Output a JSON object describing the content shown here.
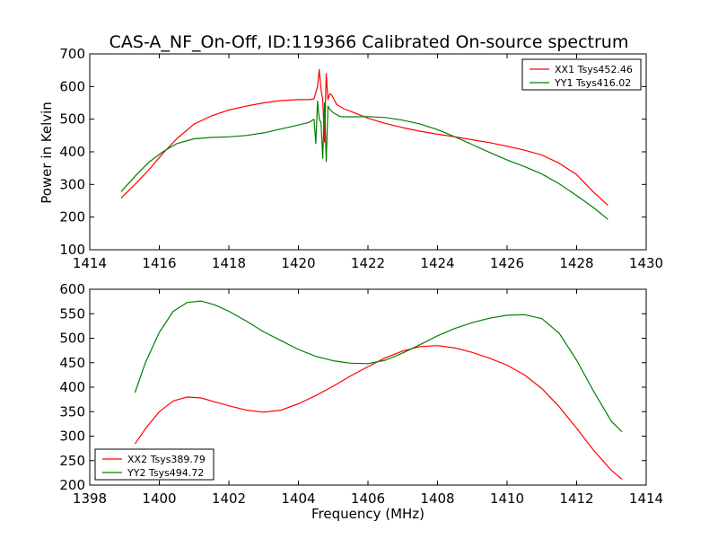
{
  "title": "CAS-A_NF_On-Off, ID:119366 Calibrated On-source spectrum",
  "ylabel": "Power in Kelvin",
  "xlabel": "Frequency (MHz)",
  "colors": {
    "red": "#ff0000",
    "green": "#008000"
  },
  "chart_data": [
    {
      "type": "line",
      "xlim": [
        1414,
        1430
      ],
      "ylim": [
        100,
        700
      ],
      "xticks": [
        1414,
        1416,
        1418,
        1420,
        1422,
        1424,
        1426,
        1428,
        1430
      ],
      "yticks": [
        100,
        200,
        300,
        400,
        500,
        600,
        700
      ],
      "legend_position": "top-right",
      "ylabel": "Power in Kelvin",
      "series": [
        {
          "name": "XX1 Tsys452.46",
          "color": "#ff0000",
          "x": [
            1414.9,
            1415.3,
            1415.7,
            1416.1,
            1416.5,
            1417.0,
            1417.5,
            1418.0,
            1418.5,
            1419.0,
            1419.5,
            1420.0,
            1420.3,
            1420.45,
            1420.55,
            1420.6,
            1420.65,
            1420.7,
            1420.75,
            1420.8,
            1420.85,
            1420.9,
            1420.95,
            1421.0,
            1421.1,
            1421.3,
            1421.6,
            1422.0,
            1422.5,
            1423.0,
            1423.5,
            1424.0,
            1424.5,
            1425.0,
            1425.5,
            1426.0,
            1426.5,
            1427.0,
            1427.5,
            1428.0,
            1428.5,
            1428.9
          ],
          "y": [
            258,
            300,
            345,
            395,
            440,
            485,
            510,
            528,
            540,
            550,
            557,
            560,
            560,
            562,
            600,
            652,
            590,
            560,
            430,
            640,
            560,
            578,
            575,
            565,
            545,
            532,
            520,
            503,
            487,
            474,
            463,
            454,
            446,
            437,
            428,
            417,
            405,
            390,
            365,
            330,
            275,
            236
          ]
        },
        {
          "name": "YY1 Tsys416.02",
          "color": "#008000",
          "x": [
            1414.9,
            1415.3,
            1415.7,
            1416.1,
            1416.5,
            1417.0,
            1417.5,
            1418.0,
            1418.5,
            1419.0,
            1419.5,
            1420.0,
            1420.3,
            1420.45,
            1420.5,
            1420.55,
            1420.6,
            1420.65,
            1420.7,
            1420.75,
            1420.8,
            1420.85,
            1420.9,
            1421.0,
            1421.2,
            1421.5,
            1422.0,
            1422.5,
            1423.0,
            1423.5,
            1424.0,
            1424.5,
            1425.0,
            1425.5,
            1426.0,
            1426.5,
            1427.0,
            1427.5,
            1428.0,
            1428.5,
            1428.9
          ],
          "y": [
            278,
            325,
            368,
            400,
            425,
            440,
            444,
            446,
            450,
            458,
            470,
            482,
            490,
            500,
            425,
            555,
            500,
            490,
            380,
            550,
            370,
            540,
            530,
            520,
            508,
            507,
            508,
            505,
            497,
            485,
            468,
            446,
            422,
            398,
            375,
            355,
            332,
            302,
            266,
            228,
            193
          ]
        }
      ]
    },
    {
      "type": "line",
      "xlim": [
        1398,
        1414
      ],
      "ylim": [
        200,
        600
      ],
      "xticks": [
        1398,
        1400,
        1402,
        1404,
        1406,
        1408,
        1410,
        1412,
        1414
      ],
      "yticks": [
        200,
        250,
        300,
        350,
        400,
        450,
        500,
        550,
        600
      ],
      "legend_position": "bottom-left",
      "xlabel": "Frequency (MHz)",
      "series": [
        {
          "name": "XX2 Tsys389.79",
          "color": "#ff0000",
          "x": [
            1399.3,
            1399.6,
            1400.0,
            1400.4,
            1400.8,
            1401.2,
            1401.6,
            1402.0,
            1402.5,
            1403.0,
            1403.5,
            1404.0,
            1404.5,
            1405.0,
            1405.5,
            1406.0,
            1406.5,
            1407.0,
            1407.5,
            1408.0,
            1408.5,
            1409.0,
            1409.5,
            1410.0,
            1410.5,
            1411.0,
            1411.5,
            1412.0,
            1412.5,
            1413.0,
            1413.3
          ],
          "y": [
            284,
            315,
            350,
            372,
            380,
            378,
            370,
            362,
            353,
            349,
            353,
            366,
            383,
            402,
            423,
            442,
            460,
            474,
            483,
            485,
            480,
            471,
            459,
            445,
            425,
            397,
            360,
            316,
            270,
            230,
            212
          ]
        },
        {
          "name": "YY2 Tsys494.72",
          "color": "#008000",
          "x": [
            1399.3,
            1399.6,
            1400.0,
            1400.4,
            1400.8,
            1401.2,
            1401.6,
            1402.0,
            1402.5,
            1403.0,
            1403.5,
            1404.0,
            1404.5,
            1405.0,
            1405.5,
            1406.0,
            1406.5,
            1407.0,
            1407.5,
            1408.0,
            1408.5,
            1409.0,
            1409.5,
            1410.0,
            1410.5,
            1411.0,
            1411.5,
            1412.0,
            1412.5,
            1413.0,
            1413.3
          ],
          "y": [
            389,
            450,
            512,
            555,
            573,
            576,
            568,
            555,
            535,
            513,
            495,
            477,
            463,
            454,
            449,
            448,
            455,
            470,
            487,
            505,
            520,
            532,
            541,
            547,
            548,
            540,
            510,
            455,
            390,
            330,
            309
          ]
        }
      ]
    }
  ]
}
